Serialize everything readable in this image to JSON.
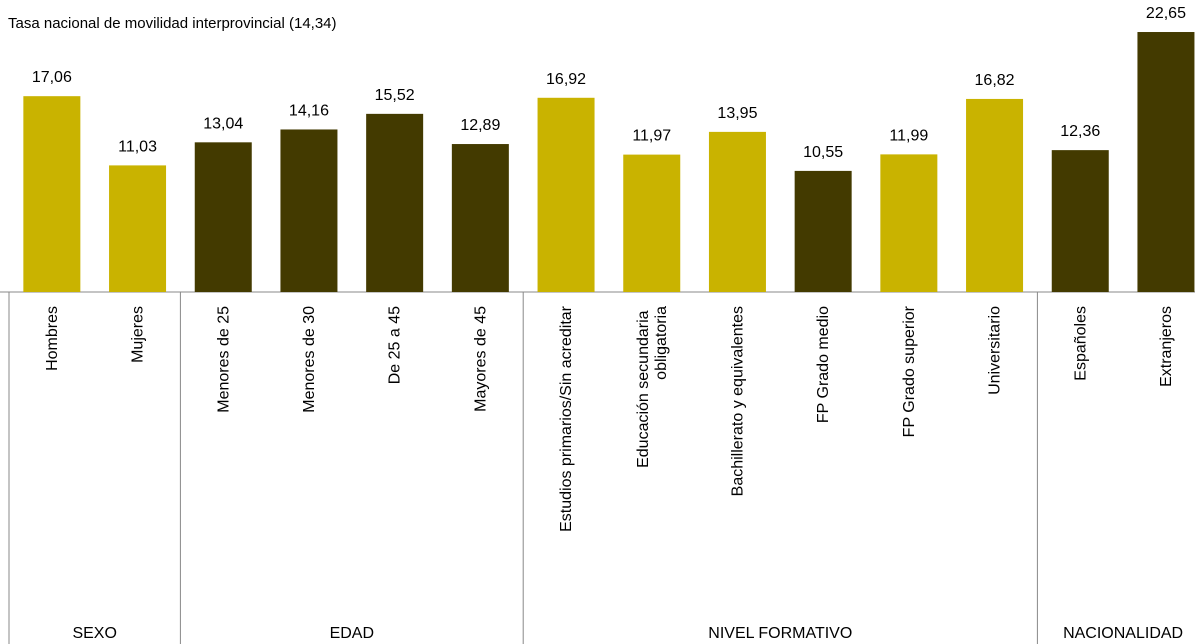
{
  "chart_data": {
    "type": "bar",
    "title": "Tasa nacional de movilidad interprovincial (14,34)",
    "categories": [
      "Hombres",
      "Mujeres",
      "Menores de 25",
      "Menores de 30",
      "De 25 a 45",
      "Mayores de 45",
      "Estudios primarios/Sin acreditar",
      "Educación secundaria\nobligatoria",
      "Bachillerato y equivalentes",
      "FP Grado medio",
      "FP Grado superior",
      "Universitario",
      "Españoles",
      "Extranjeros"
    ],
    "values": [
      17.06,
      11.03,
      13.04,
      14.16,
      15.52,
      12.89,
      16.92,
      11.97,
      13.95,
      10.55,
      11.99,
      16.82,
      12.36,
      22.65
    ],
    "value_labels": [
      "17,06",
      "11,03",
      "13,04",
      "14,16",
      "15,52",
      "12,89",
      "16,92",
      "11,97",
      "13,95",
      "10,55",
      "11,99",
      "16,82",
      "12,36",
      "22,65"
    ],
    "colors": [
      "#c9b300",
      "#c9b300",
      "#433a00",
      "#433a00",
      "#433a00",
      "#433a00",
      "#c9b300",
      "#c9b300",
      "#c9b300",
      "#433a00",
      "#c9b300",
      "#c9b300",
      "#433a00",
      "#433a00"
    ],
    "groups": [
      {
        "label": "SEXO",
        "span": 2
      },
      {
        "label": "EDAD",
        "span": 4
      },
      {
        "label": "NIVEL FORMATIVO",
        "span": 6
      },
      {
        "label": "NACIONALIDAD",
        "span": 2
      }
    ],
    "ylim": [
      0,
      23
    ]
  }
}
